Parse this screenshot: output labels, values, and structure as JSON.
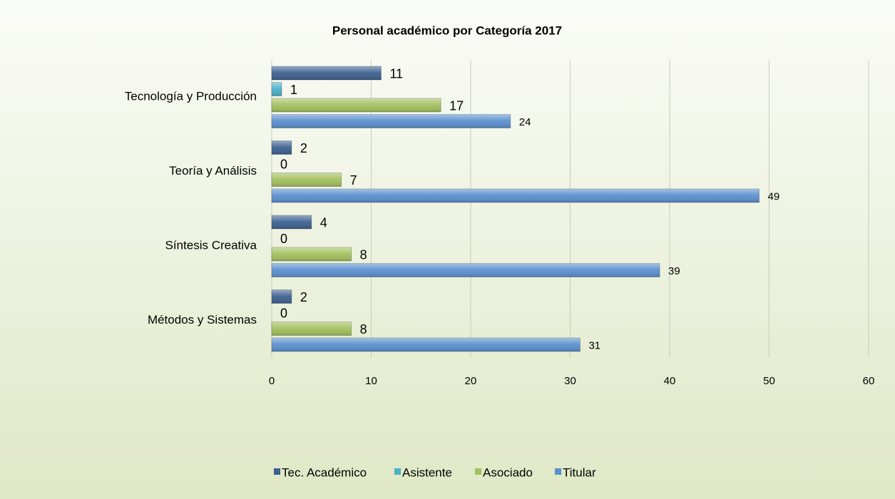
{
  "chart_data": {
    "type": "bar",
    "orientation": "horizontal",
    "title": "Personal académico por Categoría 2017",
    "categories": [
      "Tecnología y Producción",
      "Teoría y Análisis",
      "Síntesis Creativa",
      "Métodos y Sistemas"
    ],
    "series": [
      {
        "name": "Tec. Académico",
        "color": "#3d6190",
        "values": [
          11,
          2,
          4,
          2
        ]
      },
      {
        "name": "Asistente",
        "color": "#4bb0c8",
        "values": [
          1,
          0,
          0,
          0
        ]
      },
      {
        "name": "Asociado",
        "color": "#a3bf5e",
        "values": [
          17,
          7,
          8,
          8
        ]
      },
      {
        "name": "Titular",
        "color": "#5a8fce",
        "values": [
          24,
          49,
          39,
          31
        ]
      }
    ],
    "xlim": [
      0,
      60
    ],
    "xticks": [
      0,
      10,
      20,
      30,
      40,
      50,
      60
    ],
    "grid": true,
    "legend": "bottom"
  }
}
